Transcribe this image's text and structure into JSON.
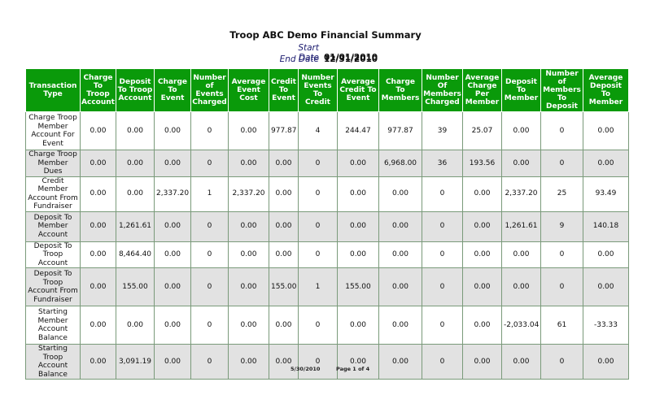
{
  "report": {
    "title": "Troop ABC Demo Financial Summary",
    "start_label": "Start Date",
    "start_value": "01/01/2010",
    "end_label": "End Date",
    "end_value": "12/31/2010"
  },
  "columns": [
    "Transaction Type",
    "Charge To Troop Account",
    "Deposit To Troop Account",
    "Charge To Event",
    "Number of Events Charged",
    "Average Event Cost",
    "Credit To Event",
    "Number Events To Credit",
    "Average Credit To Event",
    "Charge To Members",
    "Number Of Members Charged",
    "Average Charge Per Member",
    "Deposit To Member",
    "Number of Members To Deposit",
    "Average Deposit To Member"
  ],
  "rows": [
    [
      "Charge Troop Member Account For Event",
      "0.00",
      "0.00",
      "0.00",
      "0",
      "0.00",
      "977.87",
      "4",
      "244.47",
      "977.87",
      "39",
      "25.07",
      "0.00",
      "0",
      "0.00"
    ],
    [
      "Charge Troop Member Dues",
      "0.00",
      "0.00",
      "0.00",
      "0",
      "0.00",
      "0.00",
      "0",
      "0.00",
      "6,968.00",
      "36",
      "193.56",
      "0.00",
      "0",
      "0.00"
    ],
    [
      "Credit Member Account From Fundraiser",
      "0.00",
      "0.00",
      "2,337.20",
      "1",
      "2,337.20",
      "0.00",
      "0",
      "0.00",
      "0.00",
      "0",
      "0.00",
      "2,337.20",
      "25",
      "93.49"
    ],
    [
      "Deposit To Member Account",
      "0.00",
      "1,261.61",
      "0.00",
      "0",
      "0.00",
      "0.00",
      "0",
      "0.00",
      "0.00",
      "0",
      "0.00",
      "1,261.61",
      "9",
      "140.18"
    ],
    [
      "Deposit To Troop Account",
      "0.00",
      "8,464.40",
      "0.00",
      "0",
      "0.00",
      "0.00",
      "0",
      "0.00",
      "0.00",
      "0",
      "0.00",
      "0.00",
      "0",
      "0.00"
    ],
    [
      "Deposit To Troop Account From Fundraiser",
      "0.00",
      "155.00",
      "0.00",
      "0",
      "0.00",
      "155.00",
      "1",
      "155.00",
      "0.00",
      "0",
      "0.00",
      "0.00",
      "0",
      "0.00"
    ],
    [
      "Starting Member Account Balance",
      "0.00",
      "0.00",
      "0.00",
      "0",
      "0.00",
      "0.00",
      "0",
      "0.00",
      "0.00",
      "0",
      "0.00",
      "-2,033.04",
      "61",
      "-33.33"
    ],
    [
      "Starting Troop Account Balance",
      "0.00",
      "3,091.19",
      "0.00",
      "0",
      "0.00",
      "0.00",
      "0",
      "0.00",
      "0.00",
      "0",
      "0.00",
      "0.00",
      "0",
      "0.00"
    ]
  ],
  "footer": {
    "date": "5/30/2010",
    "page": "Page 1 of 4"
  },
  "colors": {
    "header_bg": "#0a9a0a",
    "header_text": "#ffffff",
    "alt_row_bg": "#e2e2e2"
  }
}
